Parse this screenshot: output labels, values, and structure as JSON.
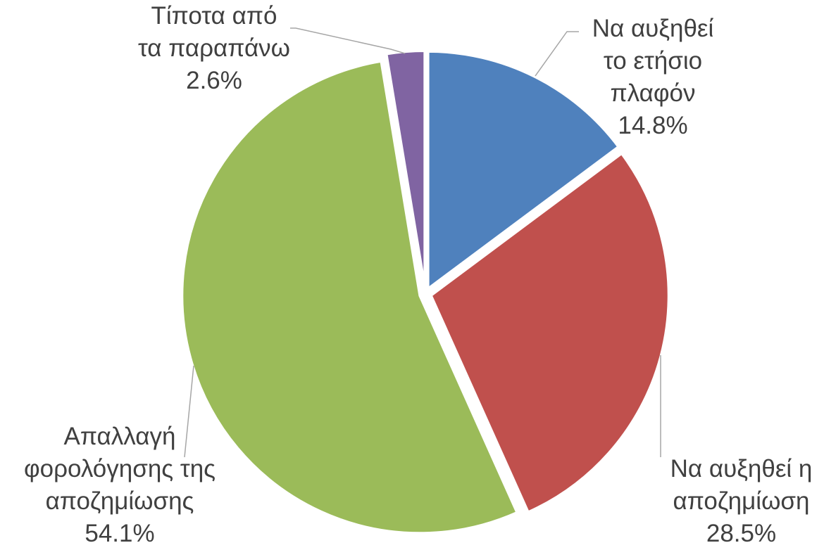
{
  "chart_data": {
    "type": "pie",
    "categories": [
      "Να αυξηθεί το ετήσιο πλαφόν",
      "Να αυξηθεί η αποζημίωση",
      "Απαλλαγή φορολόγησης της αποζημίωσης",
      "Τίποτα από τα παραπάνω"
    ],
    "values": [
      14.8,
      28.5,
      54.1,
      2.6
    ],
    "value_labels": [
      "14.8%",
      "28.5%",
      "54.1%",
      "2.6%"
    ],
    "colors": [
      "#4f81bd",
      "#c0504d",
      "#9bbb59",
      "#8064a2"
    ]
  }
}
